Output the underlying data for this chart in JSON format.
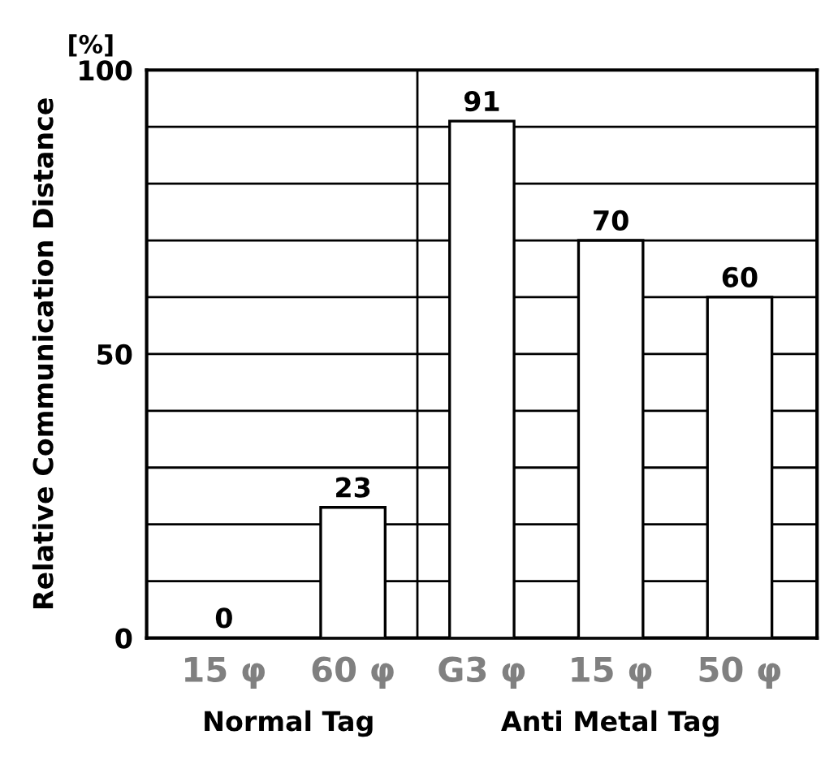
{
  "chart_data": {
    "type": "bar",
    "ylabel": "Relative Communication Distance",
    "categories": [
      "15 φ",
      "60 φ",
      "G3 φ",
      "15 φ",
      "50 φ"
    ],
    "values": [
      0,
      23,
      91,
      70,
      60
    ],
    "color": "#ffffff",
    "ylim": [
      0,
      100
    ],
    "yticks": [
      0,
      {
        "value": 10,
        "label": null
      },
      {
        "value": 20,
        "label": null
      },
      {
        "value": 30,
        "label": null
      },
      {
        "value": 40,
        "label": null
      },
      50,
      {
        "value": 60,
        "label": null
      },
      {
        "value": 70,
        "label": null
      },
      {
        "value": 80,
        "label": null
      },
      {
        "value": 90,
        "label": null
      },
      100
    ],
    "grid": "y",
    "data_labels": true,
    "annotations": [
      "[%]",
      "Normal Tag",
      "Anti Metal Tag"
    ]
  }
}
